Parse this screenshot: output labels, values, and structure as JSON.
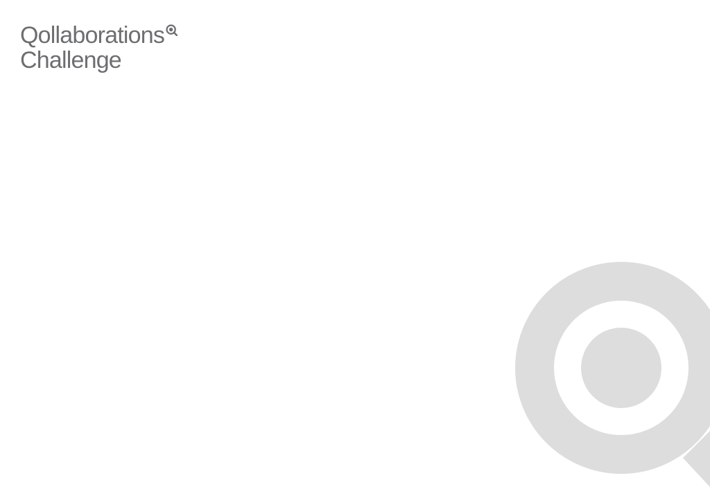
{
  "brand": {
    "line1": "Qollaborations",
    "line2": "Challenge",
    "mark_icon": "magnifier-q-icon"
  },
  "decoration": {
    "watermark_icon": "magnifier-q-icon"
  },
  "colors": {
    "text": "#6d6e70",
    "watermark": "#dddddd",
    "background": "#ffffff"
  }
}
